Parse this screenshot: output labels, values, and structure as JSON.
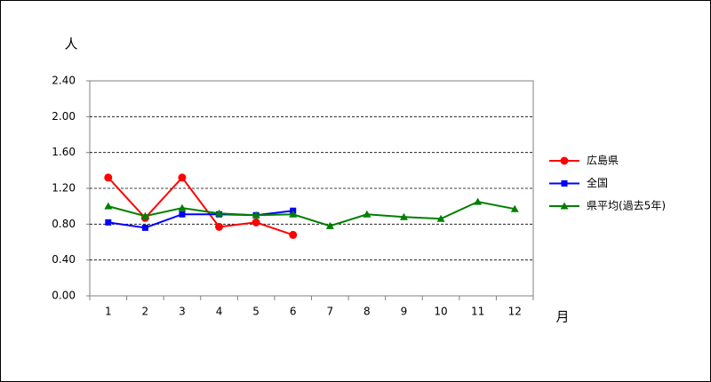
{
  "chart_data": {
    "type": "line",
    "y_label": "人",
    "x_label": "月",
    "categories": [
      "1",
      "2",
      "3",
      "4",
      "5",
      "6",
      "7",
      "8",
      "9",
      "10",
      "11",
      "12"
    ],
    "series": [
      {
        "name": "広島県",
        "color": "#ff0000",
        "marker": "circle",
        "values": [
          1.32,
          0.87,
          1.32,
          0.77,
          0.82,
          0.68,
          null,
          null,
          null,
          null,
          null,
          null
        ]
      },
      {
        "name": "全国",
        "color": "#0000ff",
        "marker": "square",
        "values": [
          0.82,
          0.76,
          0.91,
          0.91,
          0.9,
          0.95,
          null,
          null,
          null,
          null,
          null,
          null
        ]
      },
      {
        "name": "県平均(過去5年)",
        "color": "#008000",
        "marker": "triangle",
        "values": [
          1.0,
          0.89,
          0.98,
          0.92,
          0.9,
          0.91,
          0.78,
          0.91,
          0.88,
          0.86,
          1.05,
          0.97
        ]
      }
    ],
    "ylim": [
      0,
      2.4
    ],
    "yticks": [
      {
        "value": 0,
        "label": "0.00"
      },
      {
        "value": 0.4,
        "label": "0.40"
      },
      {
        "value": 0.8,
        "label": "0.80"
      },
      {
        "value": 1.2,
        "label": "1.20"
      },
      {
        "value": 1.6,
        "label": "1.60"
      },
      {
        "value": 2.0,
        "label": "2.00"
      },
      {
        "value": 2.4,
        "label": "2.40"
      }
    ],
    "grid": true,
    "legend": "right"
  }
}
